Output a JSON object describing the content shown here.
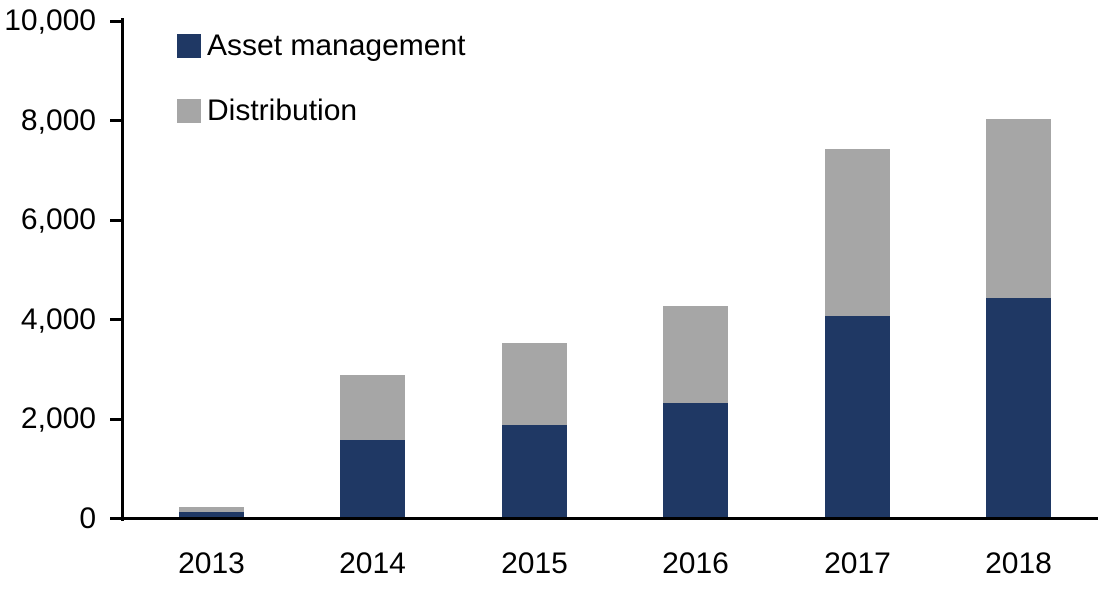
{
  "chart_data": {
    "type": "bar",
    "stacked": true,
    "title": "",
    "xlabel": "",
    "ylabel": "",
    "categories": [
      "2013",
      "2014",
      "2015",
      "2016",
      "2017",
      "2018"
    ],
    "series": [
      {
        "name": "Asset management",
        "color": "#1F3864",
        "values": [
          100,
          1550,
          1850,
          2300,
          4050,
          4400
        ]
      },
      {
        "name": "Distribution",
        "color": "#A6A6A6",
        "values": [
          100,
          1300,
          1650,
          1950,
          3350,
          3600
        ]
      }
    ],
    "stacked_totals": [
      200,
      2850,
      3500,
      4250,
      7400,
      8000
    ],
    "y_axis": {
      "min": 0,
      "max": 10000,
      "tick_interval": 2000,
      "tick_labels": [
        "0",
        "2,000",
        "4,000",
        "6,000",
        "8,000",
        "10,000"
      ]
    },
    "legend_position": "top-left",
    "grid": false,
    "axis_color": "#000000",
    "background_color": "#FFFFFF",
    "text_color": "#000000"
  }
}
